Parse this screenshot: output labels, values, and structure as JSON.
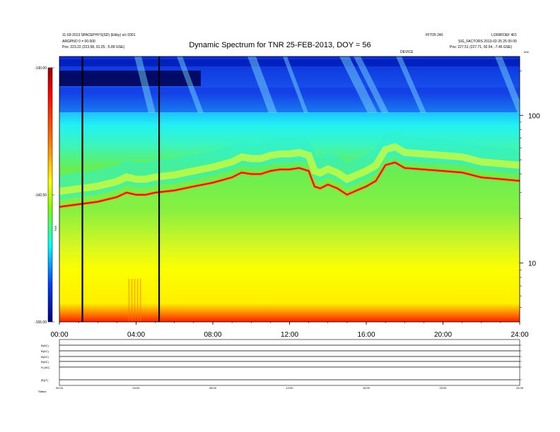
{
  "header": {
    "left_line_1": "11-03-2013 SPACEPHYS(SD) (Ebby) s/c 0301",
    "left_line_2": "ARGPNO 0 = 00.000",
    "left_pos_label": "Pos:",
    "left_pos_value": "223.22 (223.58, 91.25, -5.89 GSE)",
    "right_top_1": "FFT05 240",
    "right_top_2": "LO6RFDEF 401",
    "right_line_2": "SIG_FACTORS 2013-02-25 25 00 00",
    "right_pos_label": "Pos:",
    "right_pos_value": "227.51 (227.71, 92.54, -7.46 GSE)",
    "device_label": "DEVICE"
  },
  "chart_data": [
    {
      "type": "heatmap",
      "title": "Dynamic Spectrum for TNR 25-FEB-2013, DOY = 56",
      "xlabel": "",
      "ylabel": "",
      "x_ticks": [
        "00:00",
        "04:00",
        "08:00",
        "12:00",
        "16:00",
        "20:00",
        "24:00"
      ],
      "x_range_hours": [
        0,
        24
      ],
      "y_scale": "log",
      "y_range_khz": [
        4,
        250
      ],
      "y_ticks_right": [
        "10",
        "100"
      ],
      "y_top_label_right": "kHz",
      "colorbar": {
        "ticks": [
          "-130.00",
          "-142.50",
          "-155.00"
        ],
        "range_db": [
          -155,
          -130
        ],
        "label": "TNR",
        "colors": [
          "#00007f",
          "#0000ff",
          "#00ffff",
          "#7fff00",
          "#ffff00",
          "#ff0000",
          "#7f0000"
        ]
      },
      "series": [
        {
          "name": "emission ridge frequency (kHz)",
          "x": [
            0,
            1,
            2,
            3,
            3.5,
            4,
            4.5,
            5,
            6,
            7,
            8,
            9,
            9.5,
            10,
            10.5,
            11,
            11.5,
            12,
            12.5,
            13,
            13.3,
            13.6,
            14,
            14.5,
            15,
            15.5,
            16,
            16.5,
            17,
            17.5,
            18,
            19,
            20,
            21,
            22,
            23,
            24
          ],
          "y": [
            24,
            25,
            26,
            28,
            30,
            29,
            29,
            30,
            31,
            33,
            35,
            38,
            41,
            40,
            40,
            42,
            43,
            43,
            44,
            42,
            33,
            32,
            34,
            32,
            29,
            31,
            33,
            36,
            46,
            48,
            44,
            43,
            42,
            41,
            38,
            37,
            36
          ]
        }
      ],
      "data_gap_markers_hours": [
        1.2,
        5.2
      ]
    },
    {
      "type": "line",
      "panel": "solar wind / magnetometer stack",
      "x_ticks": [
        "00:00",
        "04:00",
        "08:00",
        "12:00",
        "16:00",
        "20:00",
        "24:00"
      ],
      "row_labels": [
        "B(AC)",
        "B(AC)",
        "B(AC)",
        "B(AC)",
        "N (AC)",
        "|B|(T)"
      ],
      "bottom_label": "Status"
    }
  ]
}
